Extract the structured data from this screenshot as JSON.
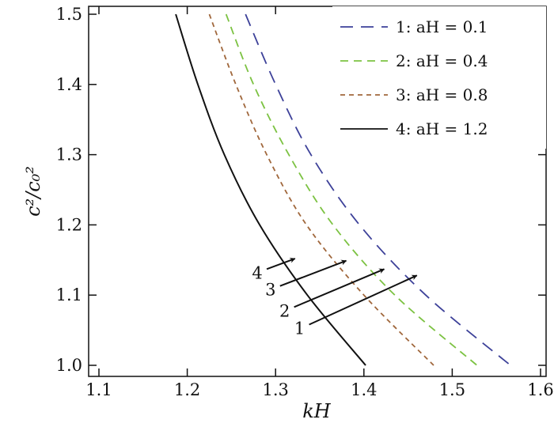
{
  "chart_data": {
    "type": "line",
    "title": "",
    "xlabel": "kH",
    "ylabel": "c²/c₀²",
    "xlim": [
      1.08,
      1.615
    ],
    "ylim": [
      0.985,
      1.515
    ],
    "xticks": [
      "1.1",
      "1.2",
      "1.3",
      "1.4",
      "1.5",
      "1.6"
    ],
    "yticks": [
      "1.0",
      "1.1",
      "1.2",
      "1.3",
      "1.4",
      "1.5"
    ],
    "grid": false,
    "legend_position": "top-right",
    "series": [
      {
        "name": "1: aH = 0.1",
        "color": "#3d4199",
        "dash": "long-dash",
        "points": [
          [
            1.266,
            1.5
          ],
          [
            1.3,
            1.4
          ],
          [
            1.34,
            1.3
          ],
          [
            1.395,
            1.2
          ],
          [
            1.47,
            1.1
          ],
          [
            1.566,
            1.0
          ]
        ]
      },
      {
        "name": "2: aH = 0.4",
        "color": "#7cc242",
        "dash": "dash",
        "points": [
          [
            1.244,
            1.5
          ],
          [
            1.275,
            1.4
          ],
          [
            1.315,
            1.3
          ],
          [
            1.365,
            1.2
          ],
          [
            1.435,
            1.1
          ],
          [
            1.528,
            1.0
          ]
        ]
      },
      {
        "name": "3: aH = 0.8",
        "color": "#a0673c",
        "dash": "short-dash",
        "points": [
          [
            1.225,
            1.5
          ],
          [
            1.255,
            1.4
          ],
          [
            1.29,
            1.3
          ],
          [
            1.335,
            1.2
          ],
          [
            1.4,
            1.1
          ],
          [
            1.479,
            1.0
          ]
        ]
      },
      {
        "name": "4: aH = 1.2",
        "color": "#111111",
        "dash": "solid",
        "points": [
          [
            1.187,
            1.5
          ],
          [
            1.212,
            1.4
          ],
          [
            1.242,
            1.3
          ],
          [
            1.282,
            1.2
          ],
          [
            1.336,
            1.1
          ],
          [
            1.402,
            1.0
          ]
        ]
      }
    ],
    "annotations": [
      {
        "text": "4",
        "from": [
          1.29,
          1.137
        ],
        "to": [
          1.322,
          1.152
        ]
      },
      {
        "text": "3",
        "from": [
          1.305,
          1.113
        ],
        "to": [
          1.38,
          1.149
        ]
      },
      {
        "text": "2",
        "from": [
          1.321,
          1.083
        ],
        "to": [
          1.423,
          1.137
        ]
      },
      {
        "text": "1",
        "from": [
          1.338,
          1.058
        ],
        "to": [
          1.46,
          1.128
        ]
      }
    ]
  }
}
